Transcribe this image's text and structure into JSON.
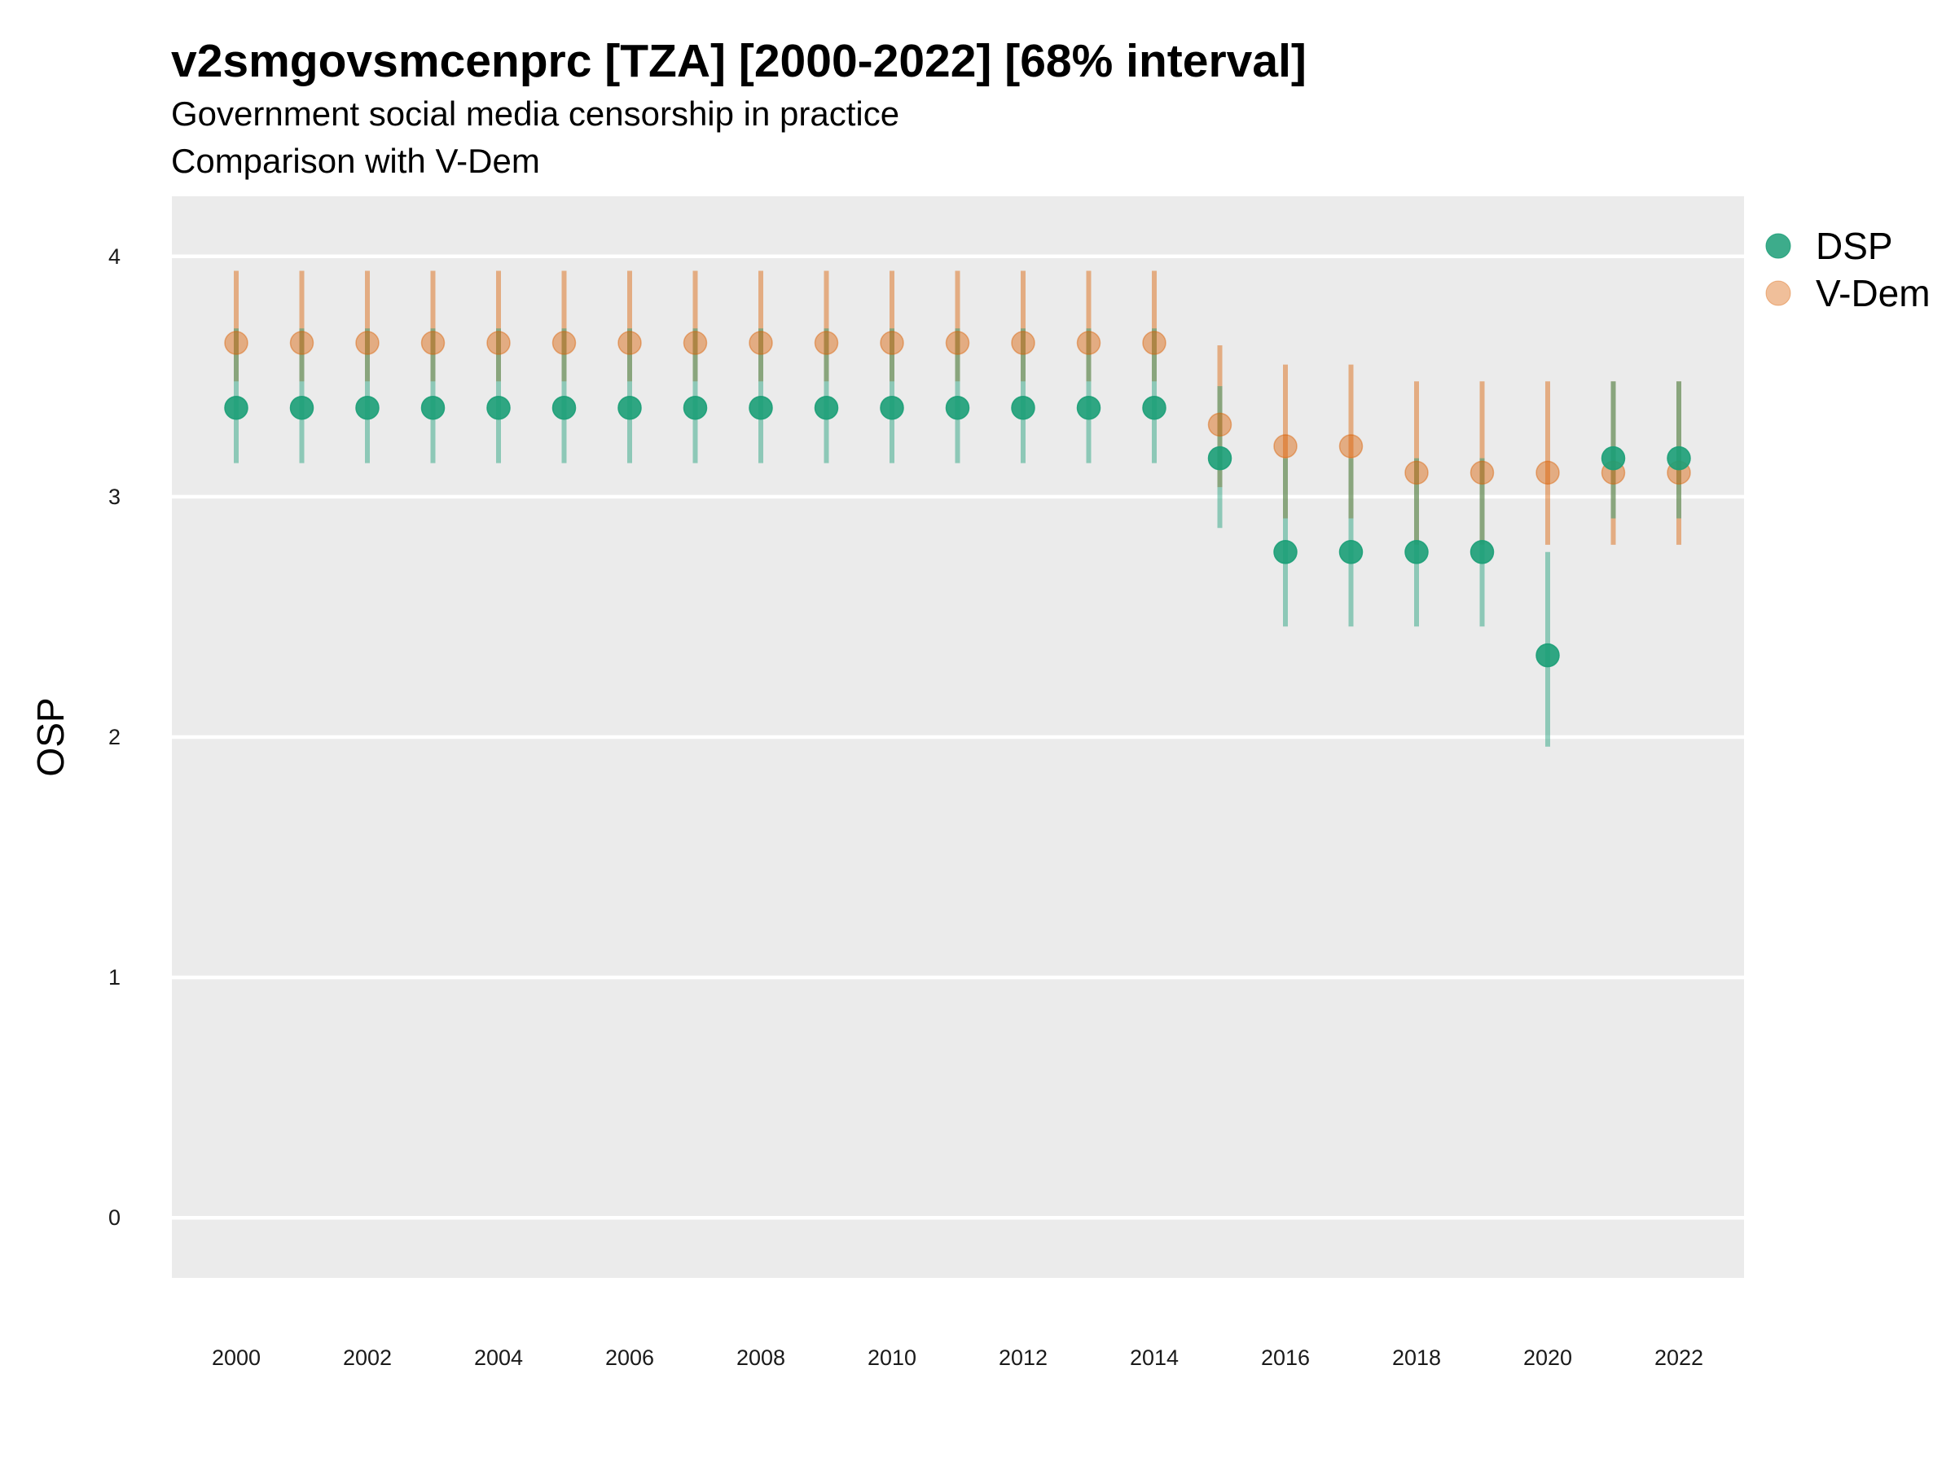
{
  "chart_data": {
    "type": "scatter",
    "title": "v2smgovsmcenprc [TZA] [2000-2022] [68% interval]",
    "subtitle_lines": [
      "Government social media censorship in practice",
      "Comparison with V-Dem"
    ],
    "xlabel": "",
    "ylabel": "OSP",
    "ylim": [
      -0.25,
      4.25
    ],
    "y_ticks": [
      0,
      1,
      2,
      3,
      4
    ],
    "x_tick_labels": [
      "2000",
      "2002",
      "2004",
      "2006",
      "2008",
      "2010",
      "2012",
      "2014",
      "2016",
      "2018",
      "2020",
      "2022"
    ],
    "x": [
      2000,
      2001,
      2002,
      2003,
      2004,
      2005,
      2006,
      2007,
      2008,
      2009,
      2010,
      2011,
      2012,
      2013,
      2014,
      2015,
      2016,
      2017,
      2018,
      2019,
      2020,
      2021,
      2022
    ],
    "legend_position": "right",
    "grid": true,
    "series": [
      {
        "name": "DSP",
        "color": "#1b9e77",
        "values": [
          3.37,
          3.37,
          3.37,
          3.37,
          3.37,
          3.37,
          3.37,
          3.37,
          3.37,
          3.37,
          3.37,
          3.37,
          3.37,
          3.37,
          3.37,
          3.16,
          2.77,
          2.77,
          2.77,
          2.77,
          2.34,
          3.16,
          3.16
        ],
        "lower": [
          3.14,
          3.14,
          3.14,
          3.14,
          3.14,
          3.14,
          3.14,
          3.14,
          3.14,
          3.14,
          3.14,
          3.14,
          3.14,
          3.14,
          3.14,
          2.87,
          2.46,
          2.46,
          2.46,
          2.46,
          1.96,
          2.91,
          2.91
        ],
        "upper": [
          3.7,
          3.7,
          3.7,
          3.7,
          3.7,
          3.7,
          3.7,
          3.7,
          3.7,
          3.7,
          3.7,
          3.7,
          3.7,
          3.7,
          3.7,
          3.46,
          3.16,
          3.16,
          3.16,
          3.16,
          2.77,
          3.48,
          3.48
        ]
      },
      {
        "name": "V-Dem",
        "color": "#d95f02",
        "values": [
          3.64,
          3.64,
          3.64,
          3.64,
          3.64,
          3.64,
          3.64,
          3.64,
          3.64,
          3.64,
          3.64,
          3.64,
          3.64,
          3.64,
          3.64,
          3.3,
          3.21,
          3.21,
          3.1,
          3.1,
          3.1,
          3.1,
          3.1
        ],
        "lower": [
          3.48,
          3.48,
          3.48,
          3.48,
          3.48,
          3.48,
          3.48,
          3.48,
          3.48,
          3.48,
          3.48,
          3.48,
          3.48,
          3.48,
          3.48,
          3.04,
          2.91,
          2.91,
          2.8,
          2.8,
          2.8,
          2.8,
          2.8
        ],
        "upper": [
          3.94,
          3.94,
          3.94,
          3.94,
          3.94,
          3.94,
          3.94,
          3.94,
          3.94,
          3.94,
          3.94,
          3.94,
          3.94,
          3.94,
          3.94,
          3.63,
          3.55,
          3.55,
          3.48,
          3.48,
          3.48,
          3.48,
          3.48
        ]
      }
    ]
  }
}
